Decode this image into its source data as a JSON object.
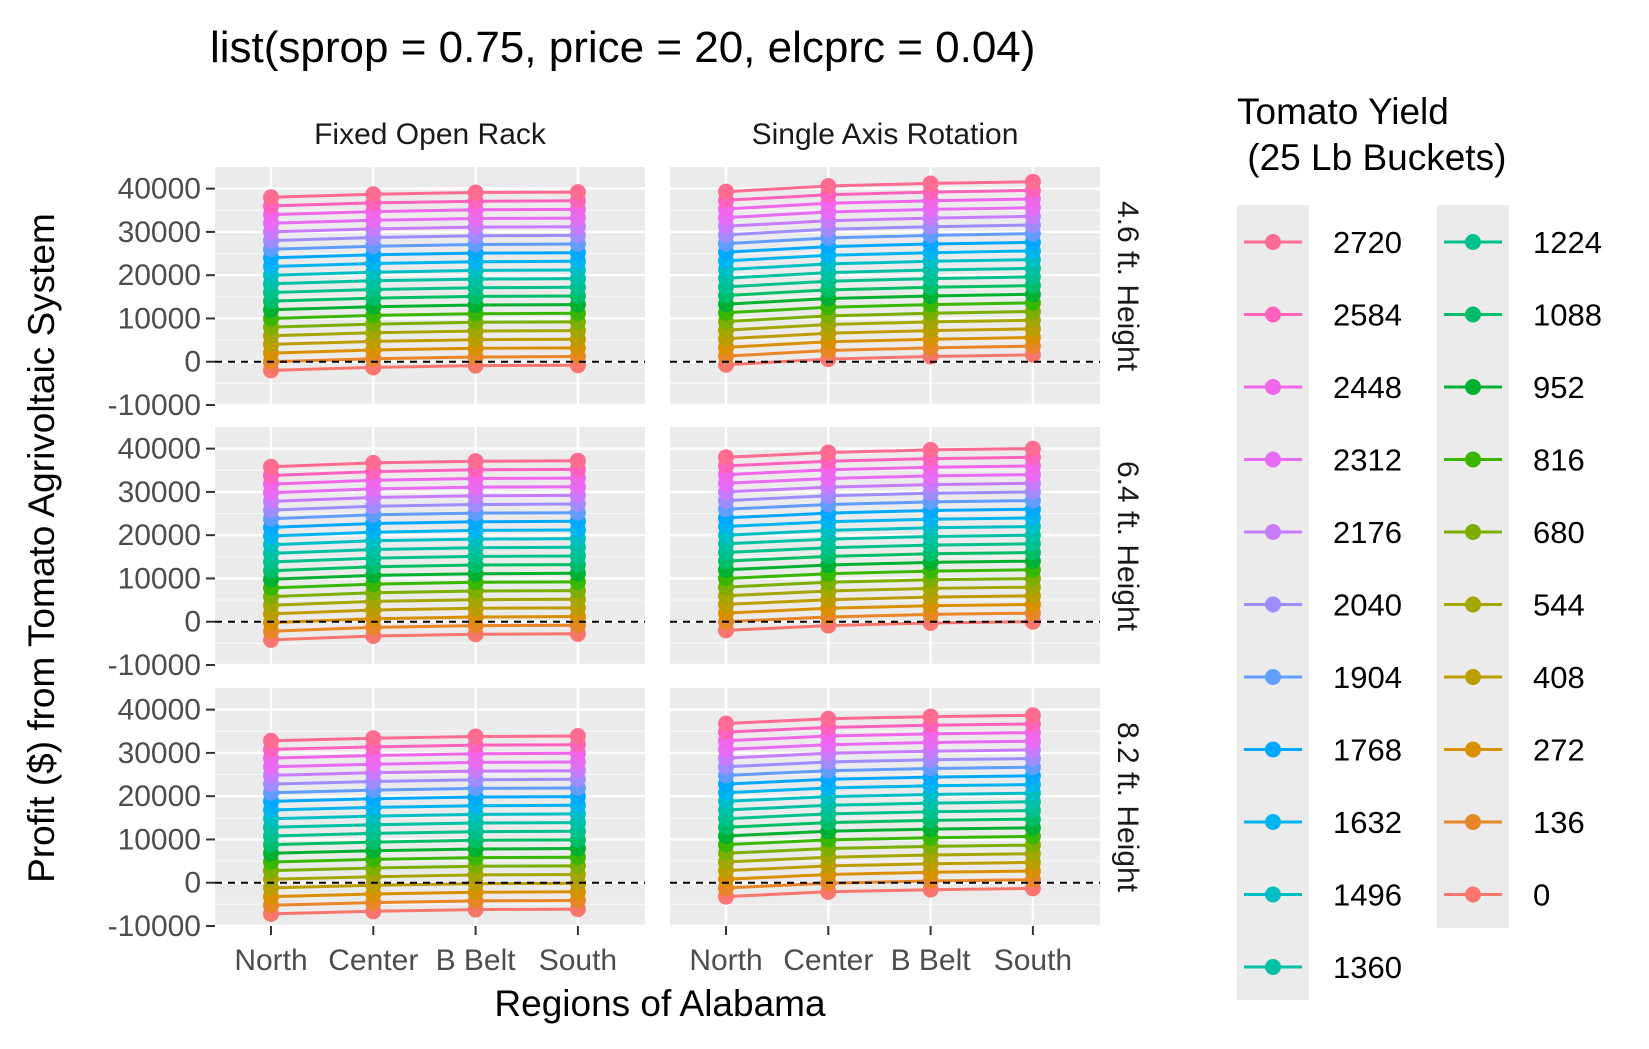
{
  "chart_data": {
    "type": "line",
    "title": "list(sprop = 0.75, price = 20, elcprc = 0.04)",
    "xlabel": "Regions of Alabama",
    "ylabel": "Profit ($) from Tomato Agrivoltaic System",
    "categories": [
      "North",
      "Center",
      "B Belt",
      "South"
    ],
    "ylim": [
      -10000,
      45000
    ],
    "yticks": [
      -10000,
      0,
      10000,
      20000,
      30000,
      40000
    ],
    "ytick_labels": [
      "-10000",
      "0",
      "10000",
      "20000",
      "30000",
      "40000"
    ],
    "hline": 0,
    "grid": true,
    "legend": {
      "title_line1": "Tomato Yield",
      "title_line2": " (25 Lb Buckets)",
      "placement": "right",
      "levels": [
        2720,
        2584,
        2448,
        2312,
        2176,
        2040,
        1904,
        1768,
        1632,
        1496,
        1360,
        1224,
        1088,
        952,
        816,
        680,
        544,
        408,
        272,
        136,
        0
      ],
      "colors": [
        "#FF6C91",
        "#FF62BC",
        "#F066EA",
        "#E76BF3",
        "#C77CFF",
        "#9F8CFF",
        "#619CFF",
        "#00A9FF",
        "#00B4F0",
        "#00BFC4",
        "#00C1A3",
        "#00C08B",
        "#00BE67",
        "#00B030",
        "#39B600",
        "#7CAE00",
        "#A3A500",
        "#BB9D00",
        "#D89000",
        "#E88526",
        "#F8766D"
      ]
    },
    "col_facets": [
      "Fixed Open Rack",
      "Single Axis Rotation"
    ],
    "row_facets": [
      "4.6 ft. Height",
      "6.4 ft. Height",
      "8.2 ft. Height"
    ],
    "series_step": 2000,
    "yield_step": 136,
    "panels": [
      {
        "col": "Fixed Open Rack",
        "row": "4.6 ft. Height",
        "zero_yield_values": [
          -2000,
          -1300,
          -900,
          -800
        ]
      },
      {
        "col": "Single Axis Rotation",
        "row": "4.6 ft. Height",
        "zero_yield_values": [
          -700,
          600,
          1200,
          1600
        ]
      },
      {
        "col": "Fixed Open Rack",
        "row": "6.4 ft. Height",
        "zero_yield_values": [
          -4200,
          -3300,
          -2900,
          -2800
        ]
      },
      {
        "col": "Single Axis Rotation",
        "row": "6.4 ft. Height",
        "zero_yield_values": [
          -2000,
          -900,
          -300,
          0
        ]
      },
      {
        "col": "Fixed Open Rack",
        "row": "8.2 ft. Height",
        "zero_yield_values": [
          -7200,
          -6600,
          -6200,
          -6100
        ]
      },
      {
        "col": "Single Axis Rotation",
        "row": "8.2 ft. Height",
        "zero_yield_values": [
          -3200,
          -2100,
          -1600,
          -1300
        ]
      }
    ]
  }
}
